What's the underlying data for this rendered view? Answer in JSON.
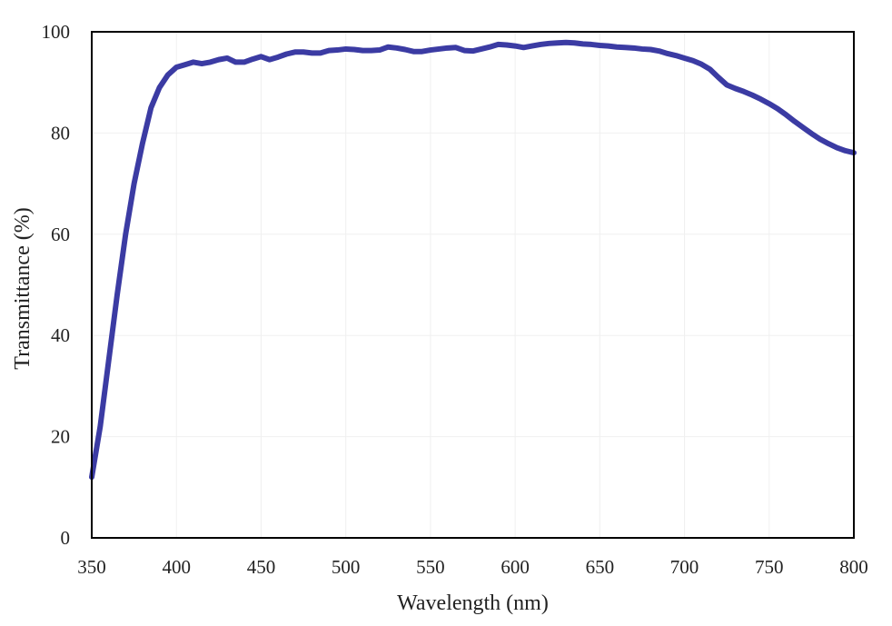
{
  "chart_data": {
    "type": "line",
    "xlabel": "Wavelength (nm)",
    "ylabel": "Transmittance (%)",
    "xlim": [
      350,
      800
    ],
    "ylim": [
      0,
      100
    ],
    "xticks": [
      "350",
      "400",
      "450",
      "500",
      "550",
      "600",
      "650",
      "700",
      "750",
      "800"
    ],
    "yticks": [
      "0",
      "20",
      "40",
      "60",
      "80",
      "100"
    ],
    "grid": true,
    "series": [
      {
        "color": "#3b3ba3",
        "x": [
          350,
          355,
          360,
          365,
          370,
          375,
          380,
          385,
          390,
          395,
          400,
          405,
          410,
          415,
          420,
          425,
          430,
          435,
          440,
          445,
          450,
          455,
          460,
          465,
          470,
          475,
          480,
          485,
          490,
          495,
          500,
          505,
          510,
          515,
          520,
          525,
          530,
          535,
          540,
          545,
          550,
          555,
          560,
          565,
          570,
          575,
          580,
          585,
          590,
          595,
          600,
          605,
          610,
          615,
          620,
          625,
          630,
          635,
          640,
          645,
          650,
          655,
          660,
          665,
          670,
          675,
          680,
          685,
          690,
          695,
          700,
          705,
          710,
          715,
          720,
          725,
          730,
          735,
          740,
          745,
          750,
          755,
          760,
          765,
          770,
          775,
          780,
          785,
          790,
          795,
          800
        ],
        "y": [
          12,
          22,
          35,
          48,
          60,
          70,
          78,
          85,
          89,
          91.5,
          93,
          93.5,
          94,
          93.7,
          94,
          94.5,
          94.8,
          94,
          94,
          94.6,
          95.1,
          94.5,
          95,
          95.6,
          96,
          96,
          95.8,
          95.8,
          96.3,
          96.4,
          96.6,
          96.5,
          96.3,
          96.3,
          96.4,
          97,
          96.8,
          96.5,
          96.1,
          96.1,
          96.4,
          96.6,
          96.8,
          96.9,
          96.3,
          96.2,
          96.6,
          97,
          97.5,
          97.4,
          97.2,
          96.9,
          97.2,
          97.5,
          97.7,
          97.8,
          97.9,
          97.8,
          97.6,
          97.5,
          97.3,
          97.2,
          97,
          96.9,
          96.8,
          96.6,
          96.5,
          96.2,
          95.7,
          95.3,
          94.8,
          94.3,
          93.6,
          92.6,
          91,
          89.5,
          88.8,
          88.2,
          87.5,
          86.7,
          85.8,
          84.8,
          83.6,
          82.3,
          81.1,
          79.9,
          78.8,
          77.9,
          77.1,
          76.5,
          76.1
        ]
      }
    ]
  }
}
